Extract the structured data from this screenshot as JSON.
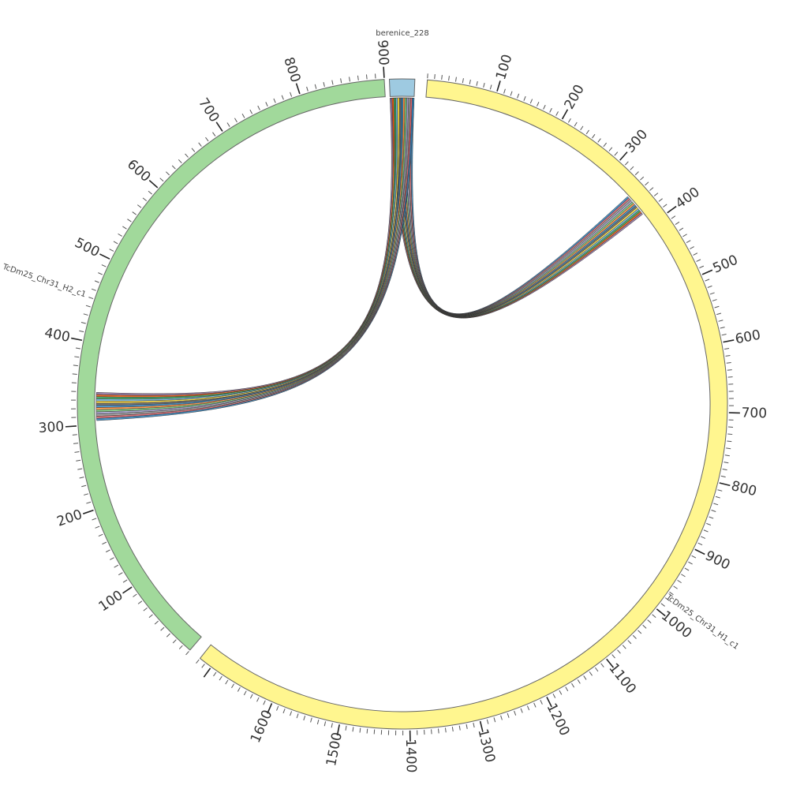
{
  "chart_data": {
    "type": "chord",
    "sequences": [
      {
        "name": "berenice_228",
        "length": 40,
        "color": "#9ecae1",
        "tick_labels": []
      },
      {
        "name": "TcDm25_Chr31_H1_c1",
        "length": 1720,
        "color": "#fff68f",
        "tick_labels": [
          "100",
          "200",
          "300",
          "400",
          "500",
          "600",
          "700",
          "800",
          "900",
          "1000",
          "1100",
          "1200",
          "1300",
          "1400",
          "1500",
          "1600"
        ]
      },
      {
        "name": "TcDm25_Chr31_H2_c1",
        "length": 900,
        "color": "#a1d99b",
        "tick_labels": [
          "100",
          "200",
          "300",
          "400",
          "500",
          "600",
          "700",
          "800",
          "900"
        ]
      }
    ],
    "links": [
      {
        "source": "berenice_228",
        "source_range": [
          0,
          40
        ],
        "target": "TcDm25_Chr31_H1_c1",
        "target_range": [
          345,
          380
        ]
      },
      {
        "source": "berenice_228",
        "source_range": [
          0,
          40
        ],
        "target": "TcDm25_Chr31_H2_c1",
        "target_range": [
          305,
          340
        ]
      }
    ],
    "ribbon_colors": [
      "#8c6d9c",
      "#e6550d",
      "#31a354",
      "#6baed6",
      "#fdd835",
      "#636363",
      "#3182bd",
      "#fd8d3c",
      "#74c476",
      "#9e9ac8",
      "#969696",
      "#d6616b",
      "#2c7fb8"
    ]
  }
}
